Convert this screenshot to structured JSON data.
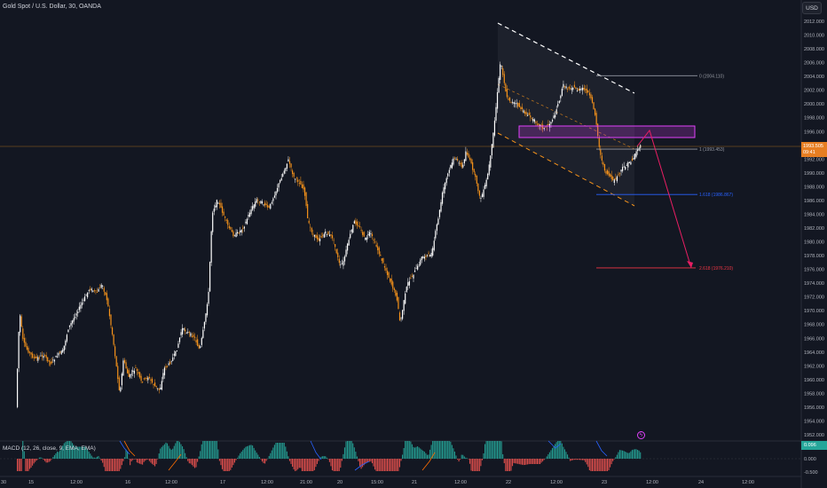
{
  "header": {
    "symbol_title": "Gold Spot / U.S. Dollar, 30, OANDA",
    "currency_button": "USD"
  },
  "price_axis": {
    "ticks": [
      "2012.000",
      "2010.000",
      "2008.000",
      "2006.000",
      "2004.000",
      "2002.000",
      "2000.000",
      "1998.000",
      "1996.000",
      "1994.000",
      "1992.000",
      "1990.000",
      "1988.000",
      "1986.000",
      "1984.000",
      "1982.000",
      "1980.000",
      "1978.000",
      "1976.000",
      "1974.000",
      "1972.000",
      "1970.000",
      "1968.000",
      "1966.000",
      "1964.000",
      "1962.000",
      "1960.000",
      "1958.000",
      "1956.000",
      "1954.000",
      "1952.000"
    ],
    "tick_values": [
      2012,
      2010,
      2008,
      2006,
      2004,
      2002,
      2000,
      1998,
      1996,
      1994,
      1992,
      1990,
      1988,
      1986,
      1984,
      1982,
      1980,
      1978,
      1976,
      1974,
      1972,
      1970,
      1968,
      1966,
      1964,
      1962,
      1960,
      1958,
      1956,
      1954,
      1952
    ],
    "current_price": "1993.505",
    "countdown": "09:41"
  },
  "time_axis": {
    "labels": [
      "30",
      "15",
      "12:00",
      "16",
      "12:00",
      "17",
      "12:00",
      "21:00",
      "20",
      "15:00",
      "21",
      "12:00",
      "22",
      "12:00",
      "23",
      "12:00",
      "24",
      "12:00"
    ]
  },
  "fib_levels": [
    {
      "label": "0 (2004.110)",
      "value": 2004.11,
      "color": "#9598a1"
    },
    {
      "label": "1 (1993.453)",
      "value": 1993.453,
      "color": "#9598a1"
    },
    {
      "label": "1.618 (1986.867)",
      "value": 1986.867,
      "color": "#2962ff"
    },
    {
      "label": "2.618 (1976.210)",
      "value": 1976.21,
      "color": "#f23645"
    }
  ],
  "macd": {
    "label": "MACD (12, 26, close, 9, EMA, EMA)",
    "axis_ticks": [
      "0.500",
      "0.000",
      "-0.500"
    ],
    "axis_values": [
      0.5,
      0,
      -0.5
    ],
    "current_value": "0.096"
  },
  "colors": {
    "background": "#131722",
    "bull_candle": "#ffffff",
    "bear_candle": "#f7931a",
    "hist_positive": "#26a69a",
    "hist_negative": "#ef5350",
    "zone": "#e040fb",
    "projection": "#e91e63"
  },
  "icons": {
    "alert": "lightning-icon"
  }
}
